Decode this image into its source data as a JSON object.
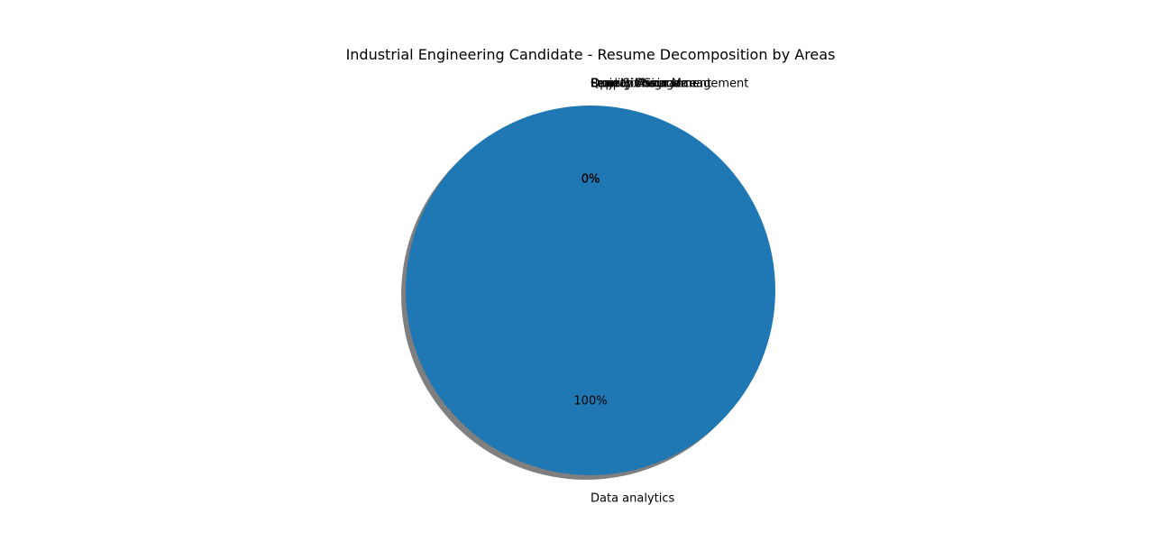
{
  "chart_data": {
    "type": "pie",
    "title": "Industrial Engineering Candidate - Resume Decomposition by Areas",
    "categories": [
      "Data analytics",
      "Operations",
      "Supply Chain Management",
      "Quality Assurance",
      "Project Management",
      "Lean Six Sigma"
    ],
    "values": [
      100,
      0,
      0,
      0,
      0,
      0
    ],
    "percent_labels": [
      "100%",
      "0%",
      "0%",
      "0%",
      "0%",
      "0%"
    ],
    "colors": [
      "#1f77b4",
      "#ff7f0e",
      "#2ca02c",
      "#d62728",
      "#9467bd",
      "#8c564b"
    ],
    "shadow": true,
    "start_angle": 90,
    "legend": "none",
    "grid": false
  }
}
